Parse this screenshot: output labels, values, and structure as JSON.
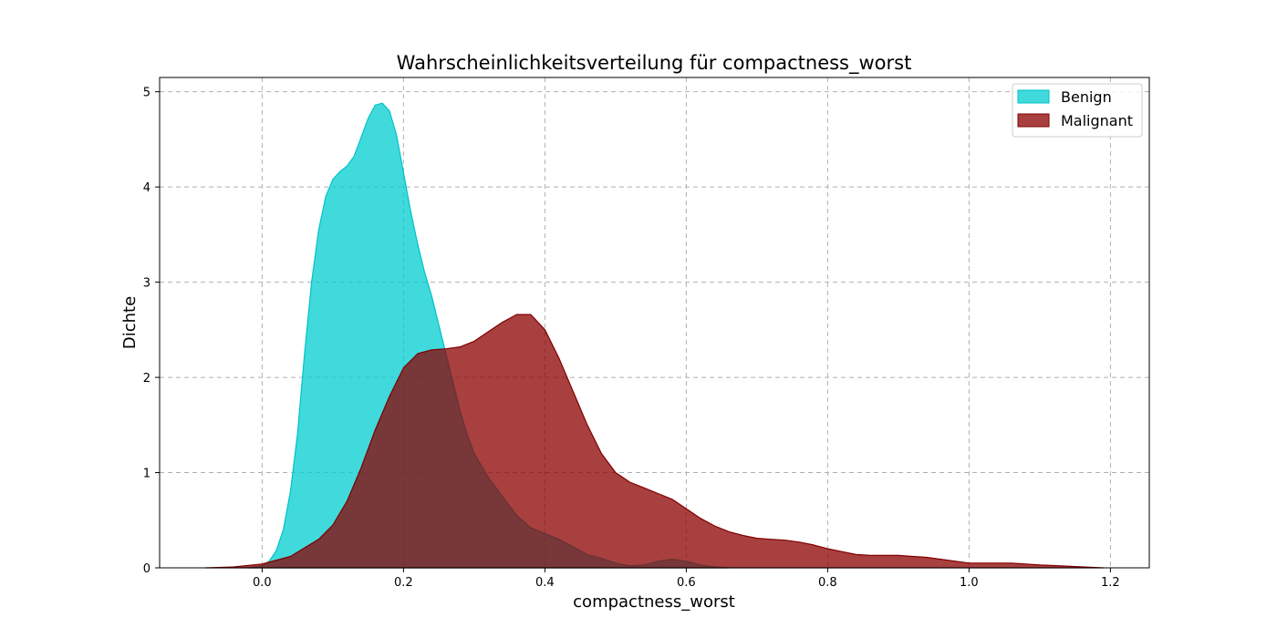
{
  "chart_data": {
    "type": "area",
    "title": "Wahrscheinlichkeitsverteilung für compactness_worst",
    "xlabel": "compactness_worst",
    "ylabel": "Dichte",
    "xlim": [
      -0.145,
      1.255
    ],
    "ylim": [
      0,
      5.15
    ],
    "xticks": [
      0.0,
      0.2,
      0.4,
      0.6,
      0.8,
      1.0,
      1.2
    ],
    "xtick_labels": [
      "0.0",
      "0.2",
      "0.4",
      "0.6",
      "0.8",
      "1.0",
      "1.2"
    ],
    "yticks": [
      0,
      1,
      2,
      3,
      4,
      5
    ],
    "ytick_labels": [
      "0",
      "1",
      "2",
      "3",
      "4",
      "5"
    ],
    "grid": true,
    "legend_position": "top-right",
    "series": [
      {
        "name": "Benign",
        "fill": "#00ced1",
        "stroke": "#00c2c5",
        "opacity": 0.75,
        "points": [
          [
            -0.02,
            0.0
          ],
          [
            0.0,
            0.02
          ],
          [
            0.01,
            0.07
          ],
          [
            0.02,
            0.18
          ],
          [
            0.03,
            0.4
          ],
          [
            0.04,
            0.8
          ],
          [
            0.05,
            1.4
          ],
          [
            0.06,
            2.25
          ],
          [
            0.07,
            3.0
          ],
          [
            0.08,
            3.55
          ],
          [
            0.09,
            3.9
          ],
          [
            0.1,
            4.08
          ],
          [
            0.11,
            4.16
          ],
          [
            0.12,
            4.22
          ],
          [
            0.13,
            4.32
          ],
          [
            0.14,
            4.52
          ],
          [
            0.15,
            4.72
          ],
          [
            0.16,
            4.86
          ],
          [
            0.17,
            4.88
          ],
          [
            0.18,
            4.8
          ],
          [
            0.19,
            4.55
          ],
          [
            0.2,
            4.15
          ],
          [
            0.21,
            3.75
          ],
          [
            0.22,
            3.4
          ],
          [
            0.23,
            3.1
          ],
          [
            0.24,
            2.85
          ],
          [
            0.25,
            2.55
          ],
          [
            0.26,
            2.25
          ],
          [
            0.27,
            1.95
          ],
          [
            0.28,
            1.65
          ],
          [
            0.29,
            1.4
          ],
          [
            0.3,
            1.2
          ],
          [
            0.32,
            0.95
          ],
          [
            0.34,
            0.75
          ],
          [
            0.36,
            0.55
          ],
          [
            0.38,
            0.42
          ],
          [
            0.4,
            0.36
          ],
          [
            0.42,
            0.3
          ],
          [
            0.44,
            0.22
          ],
          [
            0.46,
            0.14
          ],
          [
            0.48,
            0.1
          ],
          [
            0.5,
            0.05
          ],
          [
            0.52,
            0.02
          ],
          [
            0.54,
            0.03
          ],
          [
            0.56,
            0.07
          ],
          [
            0.58,
            0.09
          ],
          [
            0.6,
            0.07
          ],
          [
            0.62,
            0.03
          ],
          [
            0.64,
            0.01
          ],
          [
            0.66,
            0.0
          ]
        ]
      },
      {
        "name": "Malignant",
        "fill": "#8b0000",
        "stroke": "#800000",
        "opacity": 0.75,
        "points": [
          [
            -0.08,
            0.0
          ],
          [
            -0.04,
            0.01
          ],
          [
            0.0,
            0.04
          ],
          [
            0.04,
            0.12
          ],
          [
            0.08,
            0.3
          ],
          [
            0.1,
            0.45
          ],
          [
            0.12,
            0.7
          ],
          [
            0.14,
            1.05
          ],
          [
            0.16,
            1.45
          ],
          [
            0.18,
            1.8
          ],
          [
            0.2,
            2.1
          ],
          [
            0.22,
            2.25
          ],
          [
            0.24,
            2.29
          ],
          [
            0.26,
            2.3
          ],
          [
            0.28,
            2.32
          ],
          [
            0.3,
            2.38
          ],
          [
            0.32,
            2.48
          ],
          [
            0.34,
            2.58
          ],
          [
            0.36,
            2.66
          ],
          [
            0.38,
            2.66
          ],
          [
            0.4,
            2.5
          ],
          [
            0.42,
            2.2
          ],
          [
            0.44,
            1.85
          ],
          [
            0.46,
            1.5
          ],
          [
            0.48,
            1.2
          ],
          [
            0.5,
            1.0
          ],
          [
            0.52,
            0.9
          ],
          [
            0.54,
            0.84
          ],
          [
            0.56,
            0.78
          ],
          [
            0.58,
            0.72
          ],
          [
            0.6,
            0.62
          ],
          [
            0.62,
            0.52
          ],
          [
            0.64,
            0.44
          ],
          [
            0.66,
            0.38
          ],
          [
            0.68,
            0.34
          ],
          [
            0.7,
            0.31
          ],
          [
            0.72,
            0.3
          ],
          [
            0.74,
            0.29
          ],
          [
            0.76,
            0.27
          ],
          [
            0.78,
            0.24
          ],
          [
            0.8,
            0.2
          ],
          [
            0.82,
            0.17
          ],
          [
            0.84,
            0.14
          ],
          [
            0.86,
            0.13
          ],
          [
            0.88,
            0.13
          ],
          [
            0.9,
            0.13
          ],
          [
            0.92,
            0.12
          ],
          [
            0.94,
            0.11
          ],
          [
            0.96,
            0.09
          ],
          [
            0.98,
            0.07
          ],
          [
            1.0,
            0.05
          ],
          [
            1.02,
            0.05
          ],
          [
            1.04,
            0.05
          ],
          [
            1.06,
            0.05
          ],
          [
            1.08,
            0.04
          ],
          [
            1.1,
            0.03
          ],
          [
            1.13,
            0.02
          ],
          [
            1.16,
            0.01
          ],
          [
            1.19,
            0.0
          ]
        ]
      }
    ]
  }
}
